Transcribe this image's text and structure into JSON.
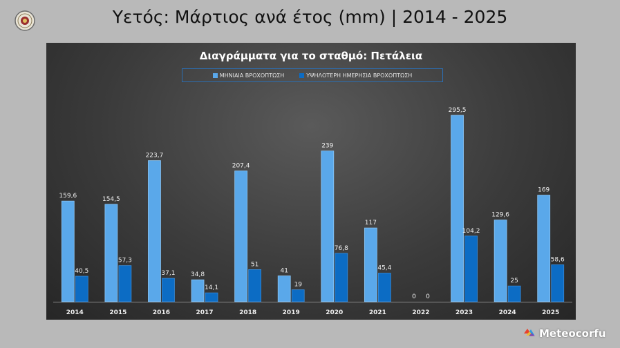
{
  "slide_title": "Υετός: Μάρτιος ανά έτος (mm) | 2014 - 2025",
  "brand": {
    "name": "Meteocorfu",
    "logo_icon": "meteocorfu-logo-icon",
    "seal_icon": "station-seal-icon"
  },
  "colors": {
    "monthly": "#5aa8ea",
    "max_daily": "#0c6cc4",
    "legend_border": "#2b6fb5"
  },
  "chart_data": {
    "type": "bar",
    "title": "Διαγράμματα για το σταθμό: Πετάλεια",
    "legend_position": "top",
    "grid": false,
    "ylim": [
      0,
      310
    ],
    "categories": [
      "2014",
      "2015",
      "2016",
      "2017",
      "2018",
      "2019",
      "2020",
      "2021",
      "2022",
      "2023",
      "2024",
      "2025"
    ],
    "series": [
      {
        "name": "ΜΗΝΙΑΙΑ ΒΡΟΧΟΠΤΩΣΗ",
        "values": [
          159.6,
          154.5,
          223.7,
          34.8,
          207.4,
          41,
          239,
          117,
          0,
          295.5,
          129.6,
          169
        ],
        "labels": [
          "159,6",
          "154,5",
          "223,7",
          "34,8",
          "207,4",
          "41",
          "239",
          "117",
          "0",
          "295,5",
          "129,6",
          "169"
        ]
      },
      {
        "name": "ΥΨΗΛΟΤΕΡΗ ΗΜΕΡΗΣΙΑ ΒΡΟΧΟΠΤΩΣΗ",
        "values": [
          40.5,
          57.3,
          37.1,
          14.1,
          51,
          19,
          76.8,
          45.4,
          0,
          104.2,
          25,
          58.6
        ],
        "labels": [
          "40,5",
          "57,3",
          "37,1",
          "14,1",
          "51",
          "19",
          "76,8",
          "45,4",
          "0",
          "104,2",
          "25",
          "58,6"
        ]
      }
    ]
  }
}
